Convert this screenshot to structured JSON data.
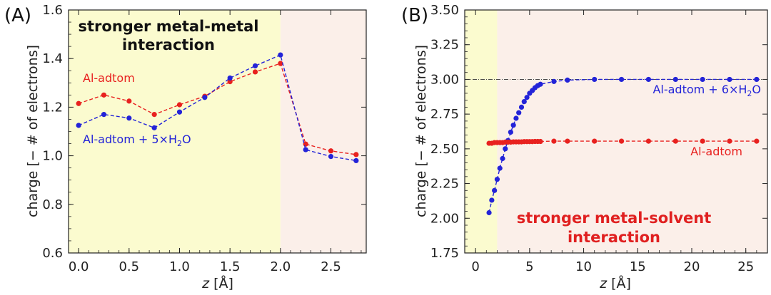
{
  "chart_data": [
    {
      "panel": "(A)",
      "type": "line",
      "xlabel_italic": "z",
      "xlabel_unit": "[Å]",
      "ylabel": "charge  [− # of electrons]",
      "xlim": [
        -0.1,
        2.85
      ],
      "ylim": [
        0.6,
        1.6
      ],
      "xticks": [
        "0.0",
        "0.5",
        "1.0",
        "1.5",
        "2.0",
        "2.5"
      ],
      "xtick_values": [
        0.0,
        0.5,
        1.0,
        1.5,
        2.0,
        2.5
      ],
      "yticks": [
        "0.6",
        "0.8",
        "1.0",
        "1.2",
        "1.4",
        "1.6"
      ],
      "ytick_values": [
        0.6,
        0.8,
        1.0,
        1.2,
        1.4,
        1.6
      ],
      "regions": [
        {
          "from": -0.1,
          "to": 2.0,
          "color": "#fbfbcf"
        },
        {
          "from": 2.0,
          "to": 2.85,
          "color": "#fbefe9"
        }
      ],
      "annotation_lines": [
        "stronger metal-metal",
        "interaction"
      ],
      "annotation_color": "#111111",
      "series": [
        {
          "name": "Al-adtom",
          "color": "#e8211f",
          "label_parts": [
            [
              "Al-adtom",
              ""
            ]
          ],
          "x": [
            0.0,
            0.25,
            0.5,
            0.75,
            1.0,
            1.25,
            1.5,
            1.75,
            2.0,
            2.25,
            2.5,
            2.75
          ],
          "y": [
            1.215,
            1.25,
            1.225,
            1.17,
            1.21,
            1.245,
            1.305,
            1.345,
            1.38,
            1.048,
            1.02,
            1.005
          ]
        },
        {
          "name": "Al-adtom + 5×H2O",
          "color": "#2323d8",
          "label_parts": [
            [
              "Al-adtom + 5×H",
              ""
            ],
            [
              "2",
              "sub"
            ],
            [
              "O",
              ""
            ]
          ],
          "x": [
            0.0,
            0.25,
            0.5,
            0.75,
            1.0,
            1.25,
            1.5,
            1.75,
            2.0,
            2.25,
            2.5,
            2.75
          ],
          "y": [
            1.125,
            1.17,
            1.155,
            1.115,
            1.18,
            1.24,
            1.32,
            1.37,
            1.415,
            1.025,
            0.997,
            0.98
          ]
        }
      ]
    },
    {
      "panel": "(B)",
      "type": "line",
      "xlabel_italic": "z",
      "xlabel_unit": "[Å]",
      "ylabel": "charge  [− # of electrons]",
      "xlim": [
        -1.0,
        27.0
      ],
      "ylim": [
        1.75,
        3.5
      ],
      "xticks": [
        "0",
        "5",
        "10",
        "15",
        "20",
        "25"
      ],
      "xtick_values": [
        0,
        5,
        10,
        15,
        20,
        25
      ],
      "yticks": [
        "1.75",
        "2.00",
        "2.25",
        "2.50",
        "2.75",
        "3.00",
        "3.25",
        "3.50"
      ],
      "ytick_values": [
        1.75,
        2.0,
        2.25,
        2.5,
        2.75,
        3.0,
        3.25,
        3.5
      ],
      "hline": 3.0,
      "regions": [
        {
          "from": -1.0,
          "to": 2.0,
          "color": "#fbfbcf"
        },
        {
          "from": 2.0,
          "to": 27.0,
          "color": "#fbefe9"
        }
      ],
      "annotation_lines": [
        "stronger metal-solvent",
        "interaction"
      ],
      "annotation_color": "#e02020",
      "series": [
        {
          "name": "Al-adtom + 6×H2O",
          "color": "#2323d8",
          "label_parts": [
            [
              "Al-adtom + 6×H",
              ""
            ],
            [
              "2",
              "sub"
            ],
            [
              "O",
              ""
            ]
          ],
          "x": [
            1.25,
            1.5,
            1.75,
            2.0,
            2.25,
            2.5,
            2.75,
            3.0,
            3.25,
            3.5,
            3.75,
            4.0,
            4.25,
            4.5,
            4.75,
            5.0,
            5.25,
            5.5,
            5.75,
            6.0,
            7.25,
            8.5,
            11.0,
            13.5,
            16.0,
            18.5,
            21.0,
            23.5,
            26.0
          ],
          "y": [
            2.04,
            2.13,
            2.2,
            2.28,
            2.36,
            2.43,
            2.5,
            2.56,
            2.62,
            2.67,
            2.72,
            2.76,
            2.8,
            2.84,
            2.87,
            2.9,
            2.92,
            2.94,
            2.955,
            2.965,
            2.985,
            2.995,
            3.0,
            3.0,
            3.0,
            3.0,
            3.0,
            3.0,
            3.0
          ]
        },
        {
          "name": "Al-adtom",
          "color": "#e8211f",
          "label_parts": [
            [
              "Al-adtom",
              ""
            ]
          ],
          "x": [
            1.25,
            1.5,
            1.75,
            2.0,
            2.25,
            2.5,
            2.75,
            3.0,
            3.25,
            3.5,
            3.75,
            4.0,
            4.25,
            4.5,
            4.75,
            5.0,
            5.25,
            5.5,
            5.75,
            6.0,
            7.25,
            8.5,
            11.0,
            13.5,
            16.0,
            18.5,
            21.0,
            23.5,
            26.0
          ],
          "y": [
            2.54,
            2.54,
            2.545,
            2.545,
            2.545,
            2.545,
            2.548,
            2.548,
            2.548,
            2.55,
            2.55,
            2.55,
            2.55,
            2.552,
            2.552,
            2.552,
            2.552,
            2.553,
            2.553,
            2.553,
            2.555,
            2.555,
            2.555,
            2.555,
            2.555,
            2.555,
            2.555,
            2.555,
            2.555
          ]
        }
      ]
    }
  ]
}
